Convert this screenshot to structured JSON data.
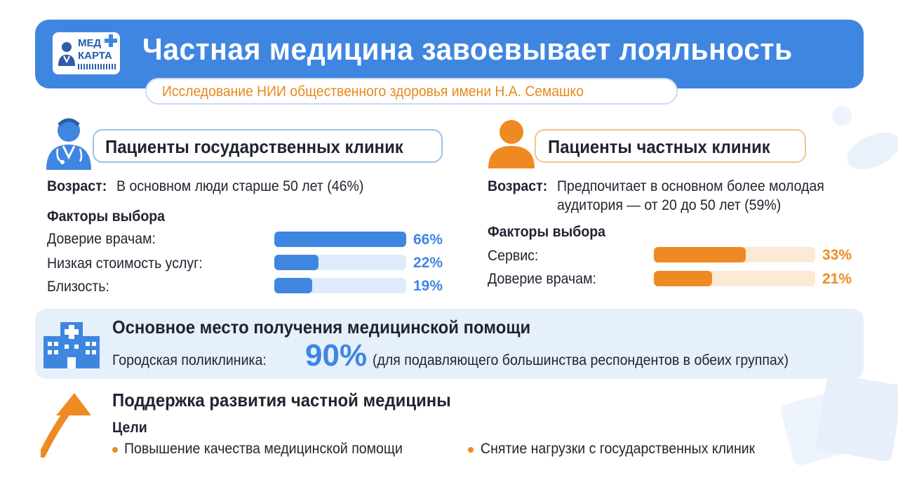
{
  "header": {
    "logo_line1": "МЕД",
    "logo_line2": "КАРТА",
    "title": "Частная медицина завоевывает лояльность",
    "subtitle": "Исследование НИИ общественного здоровья имени Н.А. Семашко"
  },
  "state_clinics": {
    "heading": "Пациенты государственных клиник",
    "age_label": "Возраст:",
    "age_text": "В основном люди старше 50 лет (46%)",
    "factors_title": "Факторы выбора",
    "factors": [
      {
        "label": "Доверие врачам:",
        "value": 66,
        "display": "66%"
      },
      {
        "label": "Низкая стоимость услуг:",
        "value": 22,
        "display": "22%"
      },
      {
        "label": "Близость:",
        "value": 19,
        "display": "19%"
      }
    ]
  },
  "private_clinics": {
    "heading": "Пациенты частных клиник",
    "age_label": "Возраст:",
    "age_text_line1": "Предпочитает в основном более молодая",
    "age_text_line2": "аудитория — от 20 до 50 лет (59%)",
    "factors_title": "Факторы выбора",
    "factors": [
      {
        "label": "Сервис:",
        "value": 33,
        "display": "33%"
      },
      {
        "label": "Доверие врачам:",
        "value": 21,
        "display": "21%"
      }
    ]
  },
  "main_place": {
    "heading": "Основное место получения медицинской помощи",
    "label": "Городская поликлиника:",
    "value": "90%",
    "note": "(для подавляющего большинства респондентов в обеих группах)"
  },
  "support": {
    "heading": "Поддержка развития частной медицины",
    "goals_title": "Цели",
    "goals": [
      "Повышение качества медицинской помощи",
      "Снятие нагрузки с государственных клиник"
    ]
  },
  "colors": {
    "blue": "#3f86e0",
    "orange": "#ef8a22",
    "light_blue": "#deebfa",
    "light_orange": "#fce9d6"
  },
  "icons": [
    "doctor-icon",
    "person-icon",
    "hospital-icon",
    "up-arrow-icon"
  ]
}
